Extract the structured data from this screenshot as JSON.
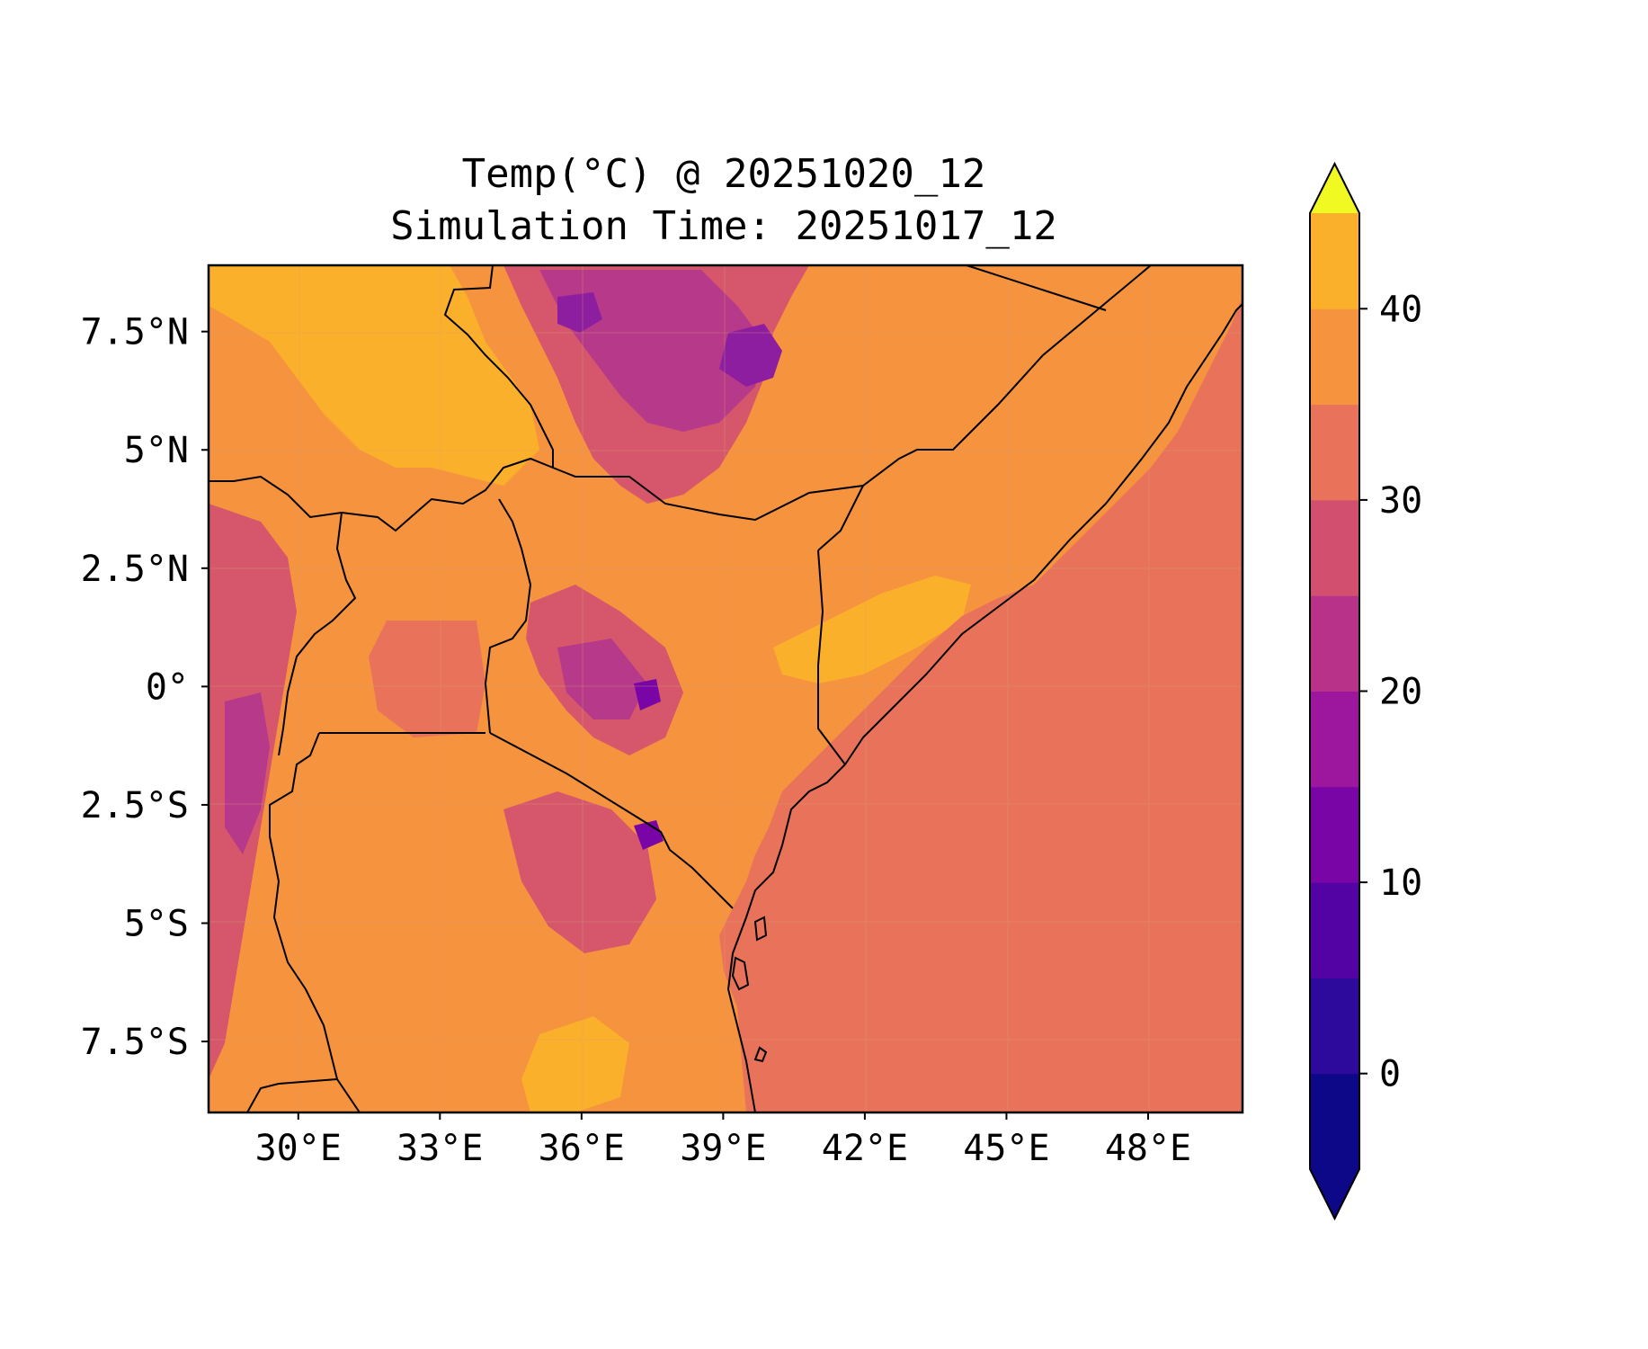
{
  "title_line1": "Temp(°C) @ 20251020_12",
  "title_line2": "Simulation Time: 20251017_12",
  "colors": {
    "ocean": "#e8735a",
    "land_warm": "#f5933f",
    "land_hot": "#fbb02c",
    "highland": "#d6576b",
    "highland_cool": "#b6398a",
    "peak": "#8e1ea0",
    "border": "#000000"
  },
  "chart_data": {
    "type": "heatmap",
    "title": "Temp(°C) @ 20251020_12 / Simulation Time: 20251017_12",
    "x_ticks": [
      "30°E",
      "33°E",
      "36°E",
      "39°E",
      "42°E",
      "45°E",
      "48°E"
    ],
    "x_tick_values": [
      30,
      33,
      36,
      39,
      42,
      45,
      48
    ],
    "y_ticks": [
      "7.5°N",
      "5°N",
      "2.5°N",
      "0°",
      "2.5°S",
      "5°S",
      "7.5°S"
    ],
    "y_tick_values": [
      7.5,
      5,
      2.5,
      0,
      -2.5,
      -5,
      -7.5
    ],
    "xlim": [
      28.1,
      50.0
    ],
    "ylim": [
      -9.0,
      8.9
    ],
    "colorbar": {
      "label_ticks": [
        "0",
        "10",
        "20",
        "30",
        "40"
      ],
      "tick_values": [
        0,
        10,
        20,
        30,
        40
      ],
      "levels": [
        -5,
        0,
        5,
        10,
        15,
        20,
        25,
        30,
        35,
        40,
        45
      ],
      "level_colors": [
        "#0d0887",
        "#2d0a9c",
        "#5302a3",
        "#7a05a6",
        "#9c179e",
        "#b93289",
        "#d24f6f",
        "#e8735a",
        "#f5933f",
        "#fbb02c",
        "#f2e125"
      ],
      "extend": "both",
      "under_color": "#0d0887",
      "over_color": "#f0f921"
    }
  }
}
